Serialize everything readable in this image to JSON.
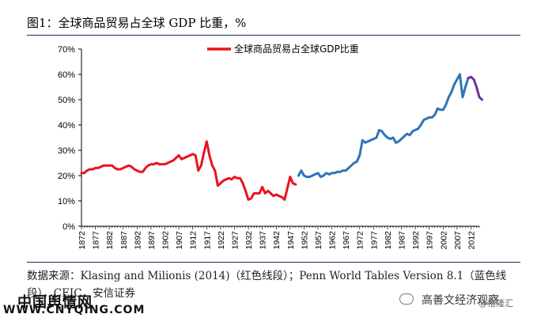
{
  "title": "图1：全球商品贸易占全球 GDP 比重，%",
  "source_text": "数据来源：Klasing and Milionis (2014)（红色线段）；Penn World Tables Version 8.1（蓝色线段），CEIC，安信证券",
  "watermarks": {
    "logo": "中国舆情网",
    "url": "WWW.CNYQING.COM",
    "account": "高善文经济观察",
    "handle": "@格隆汇"
  },
  "colors": {
    "red_series": "#e8141e",
    "blue_series": "#2e75b6",
    "purple_series": "#7030a0",
    "axis": "#000000"
  },
  "chart_data": {
    "type": "line",
    "title": "",
    "ylim": [
      0,
      70
    ],
    "yticks": [
      "0%",
      "10%",
      "20%",
      "30%",
      "40%",
      "50%",
      "60%",
      "70%"
    ],
    "ytick_values": [
      0,
      10,
      20,
      30,
      40,
      50,
      60,
      70
    ],
    "xlim": [
      1872,
      2015
    ],
    "xticks": [
      "1872",
      "1877",
      "1882",
      "1887",
      "1892",
      "1897",
      "1902",
      "1907",
      "1912",
      "1917",
      "1922",
      "1927",
      "1932",
      "1937",
      "1942",
      "1947",
      "1952",
      "1957",
      "1962",
      "1967",
      "1972",
      "1977",
      "1982",
      "1987",
      "1992",
      "1997",
      "2002",
      "2007",
      "2012"
    ],
    "legend": {
      "label": "全球商品贸易占全球GDP比重",
      "placement": "top-center"
    },
    "grid": false,
    "series": [
      {
        "name": "全球商品贸易占全球GDP比重",
        "color": "#e8141e",
        "points": [
          [
            1872,
            21
          ],
          [
            1873,
            21
          ],
          [
            1874,
            22
          ],
          [
            1875,
            22.5
          ],
          [
            1876,
            22.5
          ],
          [
            1877,
            23
          ],
          [
            1878,
            23
          ],
          [
            1879,
            23.5
          ],
          [
            1880,
            24
          ],
          [
            1881,
            24
          ],
          [
            1882,
            24
          ],
          [
            1883,
            24
          ],
          [
            1884,
            23
          ],
          [
            1885,
            22.5
          ],
          [
            1886,
            22.5
          ],
          [
            1887,
            23
          ],
          [
            1888,
            23.5
          ],
          [
            1889,
            24
          ],
          [
            1890,
            23.5
          ],
          [
            1891,
            22.5
          ],
          [
            1892,
            22
          ],
          [
            1893,
            21.5
          ],
          [
            1894,
            21.5
          ],
          [
            1895,
            23
          ],
          [
            1896,
            24
          ],
          [
            1897,
            24.5
          ],
          [
            1898,
            24.5
          ],
          [
            1899,
            25
          ],
          [
            1900,
            24.5
          ],
          [
            1901,
            24.5
          ],
          [
            1902,
            24.5
          ],
          [
            1903,
            25
          ],
          [
            1904,
            25.5
          ],
          [
            1905,
            26
          ],
          [
            1906,
            27
          ],
          [
            1907,
            28
          ],
          [
            1908,
            26.5
          ],
          [
            1909,
            27
          ],
          [
            1910,
            27.5
          ],
          [
            1911,
            28
          ],
          [
            1912,
            28.5
          ],
          [
            1913,
            28
          ],
          [
            1914,
            22
          ],
          [
            1915,
            24
          ],
          [
            1916,
            29
          ],
          [
            1917,
            33.5
          ],
          [
            1918,
            28
          ],
          [
            1919,
            24
          ],
          [
            1920,
            22
          ],
          [
            1921,
            16
          ],
          [
            1922,
            17
          ],
          [
            1923,
            18
          ],
          [
            1924,
            18.5
          ],
          [
            1925,
            19
          ],
          [
            1926,
            18.5
          ],
          [
            1927,
            19.5
          ],
          [
            1928,
            19
          ],
          [
            1929,
            19
          ],
          [
            1930,
            17
          ],
          [
            1931,
            14
          ],
          [
            1932,
            10.5
          ],
          [
            1933,
            11
          ],
          [
            1934,
            13
          ],
          [
            1935,
            13
          ],
          [
            1936,
            13
          ],
          [
            1937,
            15.5
          ],
          [
            1938,
            13
          ],
          [
            1939,
            14
          ],
          [
            1940,
            13
          ],
          [
            1941,
            12
          ],
          [
            1942,
            12.5
          ],
          [
            1943,
            12
          ],
          [
            1944,
            11.5
          ],
          [
            1945,
            10.5
          ],
          [
            1946,
            15
          ],
          [
            1947,
            19.5
          ],
          [
            1948,
            17
          ],
          [
            1949,
            16.5
          ]
        ]
      },
      {
        "name": "",
        "color": "#2e75b6",
        "points": [
          [
            1950,
            20
          ],
          [
            1951,
            22
          ],
          [
            1952,
            20
          ],
          [
            1953,
            19.5
          ],
          [
            1954,
            19.5
          ],
          [
            1955,
            20
          ],
          [
            1956,
            20.5
          ],
          [
            1957,
            21
          ],
          [
            1958,
            19.5
          ],
          [
            1959,
            20
          ],
          [
            1960,
            21
          ],
          [
            1961,
            20.5
          ],
          [
            1962,
            21
          ],
          [
            1963,
            21
          ],
          [
            1964,
            21.5
          ],
          [
            1965,
            21.5
          ],
          [
            1966,
            22
          ],
          [
            1967,
            22
          ],
          [
            1968,
            23
          ],
          [
            1969,
            24
          ],
          [
            1970,
            25
          ],
          [
            1971,
            25.5
          ],
          [
            1972,
            28
          ],
          [
            1973,
            34
          ],
          [
            1974,
            33
          ],
          [
            1975,
            33.5
          ],
          [
            1976,
            34
          ],
          [
            1977,
            34.5
          ],
          [
            1978,
            35
          ],
          [
            1979,
            38
          ],
          [
            1980,
            37.5
          ],
          [
            1981,
            36
          ],
          [
            1982,
            35
          ],
          [
            1983,
            34.5
          ],
          [
            1984,
            35
          ],
          [
            1985,
            33
          ],
          [
            1986,
            33.5
          ],
          [
            1987,
            34.5
          ],
          [
            1988,
            35.5
          ],
          [
            1989,
            36.5
          ],
          [
            1990,
            36
          ],
          [
            1991,
            37.5
          ],
          [
            1992,
            38
          ],
          [
            1993,
            38.5
          ],
          [
            1994,
            40
          ],
          [
            1995,
            42
          ],
          [
            1996,
            42.5
          ],
          [
            1997,
            43
          ],
          [
            1998,
            43
          ],
          [
            1999,
            44
          ],
          [
            2000,
            46.5
          ],
          [
            2001,
            46
          ],
          [
            2002,
            46
          ],
          [
            2003,
            48
          ],
          [
            2004,
            51
          ],
          [
            2005,
            53
          ],
          [
            2006,
            56
          ],
          [
            2007,
            58
          ],
          [
            2008,
            60
          ],
          [
            2009,
            51
          ],
          [
            2010,
            55
          ],
          [
            2011,
            58.5
          ]
        ]
      },
      {
        "name": "",
        "color": "#7030a0",
        "points": [
          [
            2011,
            58.5
          ],
          [
            2012,
            59
          ],
          [
            2013,
            58
          ],
          [
            2014,
            55
          ],
          [
            2015,
            51
          ],
          [
            2016,
            50
          ]
        ]
      }
    ]
  }
}
